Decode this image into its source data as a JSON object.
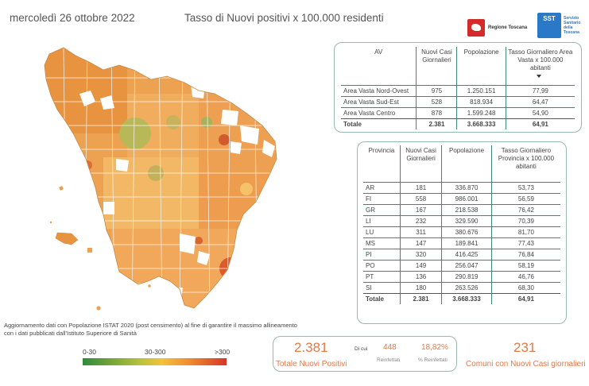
{
  "header": {
    "date": "mercoledì 26 ottobre 2022",
    "title": "Tasso di Nuovi positivi x 100.000 residenti"
  },
  "logos": {
    "regione": "Regione Toscana",
    "sst_badge": "SST",
    "sst_text": "Servizio Sanitario della Toscana"
  },
  "colors": {
    "low": "#2e8b3a",
    "mid": "#f3c23c",
    "high": "#d8352a",
    "accent": "#e07a4a",
    "table_border": "#3a8a76"
  },
  "av_table": {
    "headers": [
      "AV",
      "Nuovi Casi Giornalieri",
      "Popolazione",
      "Tasso Giornaliero Area Vasta x 100.000 abitanti"
    ],
    "rows": [
      {
        "name": "Area Vasta Nord-Ovest",
        "cases": "975",
        "pop": "1.250.151",
        "rate": "77,99"
      },
      {
        "name": "Area Vasta Sud-Est",
        "cases": "528",
        "pop": "818.934",
        "rate": "64,47"
      },
      {
        "name": "Area Vasta Centro",
        "cases": "878",
        "pop": "1.599.248",
        "rate": "54,90"
      }
    ],
    "total": {
      "name": "Totale",
      "cases": "2.381",
      "pop": "3.668.333",
      "rate": "64,91"
    }
  },
  "prov_table": {
    "headers": [
      "Provincia",
      "Nuovi Casi Giornalieri",
      "Popolazione",
      "Tasso Giornaliero Provincia x 100.000 abitanti"
    ],
    "rows": [
      {
        "name": "AR",
        "cases": "181",
        "pop": "336.870",
        "rate": "53,73"
      },
      {
        "name": "FI",
        "cases": "558",
        "pop": "986.001",
        "rate": "56,59"
      },
      {
        "name": "GR",
        "cases": "167",
        "pop": "218.538",
        "rate": "76,42"
      },
      {
        "name": "LI",
        "cases": "232",
        "pop": "329.590",
        "rate": "70,39"
      },
      {
        "name": "LU",
        "cases": "311",
        "pop": "380.676",
        "rate": "81,70"
      },
      {
        "name": "MS",
        "cases": "147",
        "pop": "189.841",
        "rate": "77,43"
      },
      {
        "name": "PI",
        "cases": "320",
        "pop": "416.425",
        "rate": "76,84"
      },
      {
        "name": "PO",
        "cases": "149",
        "pop": "256.047",
        "rate": "58,19"
      },
      {
        "name": "PT",
        "cases": "136",
        "pop": "290.819",
        "rate": "46,76"
      },
      {
        "name": "SI",
        "cases": "180",
        "pop": "263.526",
        "rate": "68,30"
      }
    ],
    "total": {
      "name": "Totale",
      "cases": "2.381",
      "pop": "3.668.333",
      "rate": "64,91"
    }
  },
  "note": "Aggiornamento dati con Popolazione ISTAT 2020 (post censimento) al fine di garantire il massimo allineamento con i dati pubblicati dall'Istituto Superiore di Sanità",
  "legend": {
    "low": "0-30",
    "mid": "30-300",
    "high": ">300"
  },
  "kpis": {
    "total_value": "2.381",
    "total_label": "Totale Nuovi Positivi",
    "di_cui": "Di cui",
    "reinf_value": "448",
    "reinf_label": "Reinfettati",
    "reinf_pct_value": "18,82%",
    "reinf_pct_label": "% Reinfettati",
    "comuni_value": "231",
    "comuni_label": "Comuni con Nuovi Casi giornalieri"
  }
}
